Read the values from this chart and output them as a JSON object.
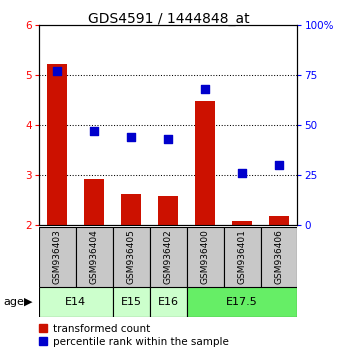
{
  "title": "GDS4591 / 1444848_at",
  "samples": [
    "GSM936403",
    "GSM936404",
    "GSM936405",
    "GSM936402",
    "GSM936400",
    "GSM936401",
    "GSM936406"
  ],
  "transformed_count": [
    5.22,
    2.92,
    2.62,
    2.57,
    4.47,
    2.07,
    2.18
  ],
  "percentile_rank": [
    77,
    47,
    44,
    43,
    68,
    26,
    30
  ],
  "age_groups": [
    {
      "label": "E14",
      "samples_idx": [
        0,
        1
      ],
      "color": "#ccffcc"
    },
    {
      "label": "E15",
      "samples_idx": [
        2
      ],
      "color": "#ccffcc"
    },
    {
      "label": "E16",
      "samples_idx": [
        3
      ],
      "color": "#ccffcc"
    },
    {
      "label": "E17.5",
      "samples_idx": [
        4,
        5,
        6
      ],
      "color": "#66ee66"
    }
  ],
  "ylim_left": [
    2,
    6
  ],
  "ylim_right": [
    0,
    100
  ],
  "yticks_left": [
    2,
    3,
    4,
    5,
    6
  ],
  "yticks_right": [
    0,
    25,
    50,
    75,
    100
  ],
  "bar_color": "#cc1100",
  "dot_color": "#0000cc",
  "bar_width": 0.55,
  "dot_size": 28,
  "sample_box_color": "#c8c8c8",
  "legend_red_label": "transformed count",
  "legend_blue_label": "percentile rank within the sample",
  "age_label": "age",
  "title_fontsize": 10,
  "tick_fontsize": 7.5,
  "legend_fontsize": 7.5,
  "age_fontsize": 8,
  "sample_fontsize": 6.5
}
